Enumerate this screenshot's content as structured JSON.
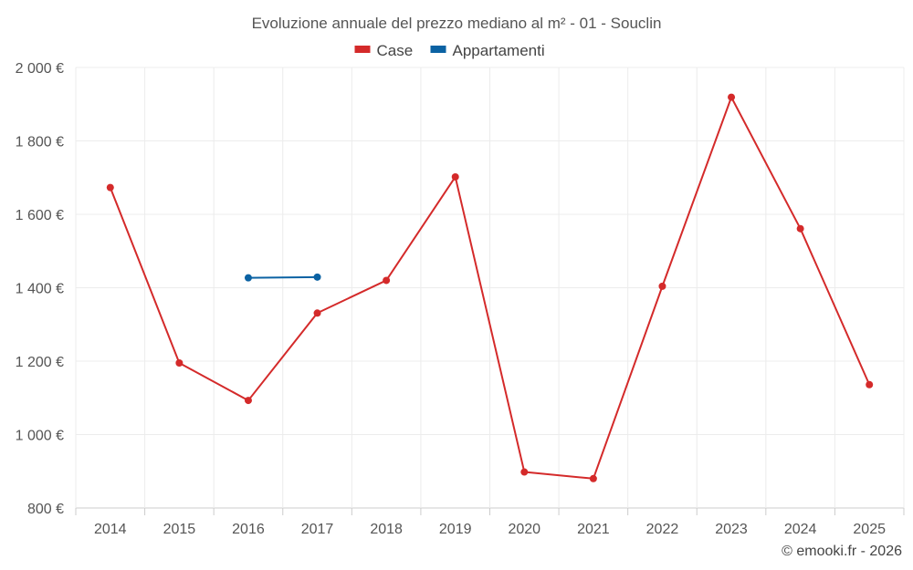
{
  "chart_data": {
    "type": "line",
    "title": "Evoluzione annuale del prezzo mediano al m² - 01 - Souclin",
    "categories": [
      "2014",
      "2015",
      "2016",
      "2017",
      "2018",
      "2019",
      "2020",
      "2021",
      "2022",
      "2023",
      "2024",
      "2025"
    ],
    "ylim": [
      800,
      2000
    ],
    "yticks": [
      800,
      1000,
      1200,
      1400,
      1600,
      1800,
      2000
    ],
    "ytick_labels": [
      "800 €",
      "1 000 €",
      "1 200 €",
      "1 400 €",
      "1 600 €",
      "1 800 €",
      "2 000 €"
    ],
    "grid": true,
    "legend_position": "top-center",
    "series": [
      {
        "name": "Case",
        "color": "#d42a2a",
        "values": [
          1673,
          1195,
          1093,
          1331,
          1420,
          1702,
          898,
          880,
          1404,
          1919,
          1561,
          1136
        ]
      },
      {
        "name": "Appartamenti",
        "color": "#0b62a3",
        "values": [
          null,
          null,
          1427,
          1429,
          null,
          null,
          null,
          null,
          null,
          null,
          null,
          null
        ]
      }
    ]
  },
  "credit": "© emooki.fr - 2026"
}
